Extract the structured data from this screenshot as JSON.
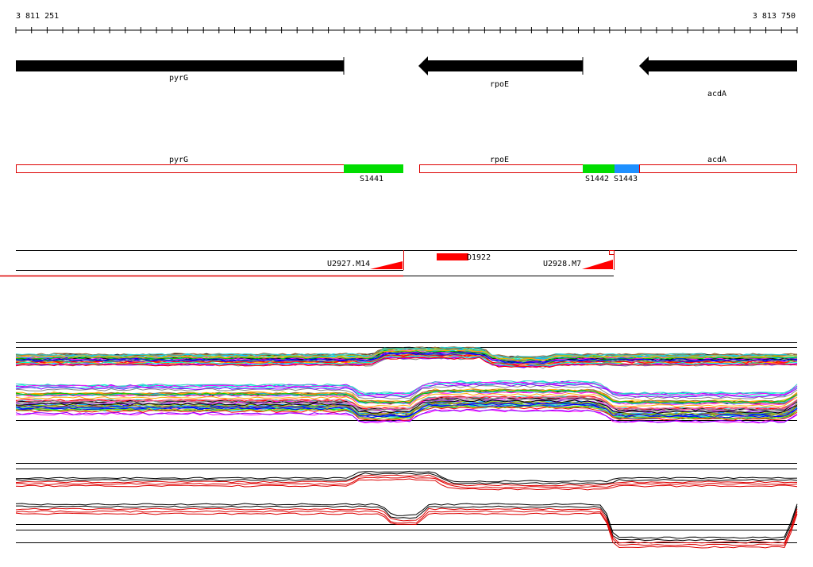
{
  "coordinates": {
    "start": "3 811 251",
    "end": "3 813 750"
  },
  "genes": [
    {
      "name": "pyrG",
      "strand": "+"
    },
    {
      "name": "rpoE",
      "strand": "-"
    },
    {
      "name": "acdA",
      "strand": "-"
    }
  ],
  "segments": {
    "gene_labels": [
      "pyrG",
      "rpoE",
      "acdA"
    ],
    "features": [
      {
        "label": "S1441",
        "color": "#00dd00"
      },
      {
        "label": "S1442",
        "color": "#00dd00"
      },
      {
        "label": "S1443",
        "color": "#1e90ff"
      }
    ]
  },
  "transcripts": [
    {
      "label": "U2927.M14"
    },
    {
      "label": "D1922"
    },
    {
      "label": "U2928.M7"
    }
  ],
  "colors": {
    "gene_arrow": "#000000",
    "segment_outline": "#dd0000",
    "transcript": "#ff0000",
    "profile_highlight": "#dd0000"
  }
}
